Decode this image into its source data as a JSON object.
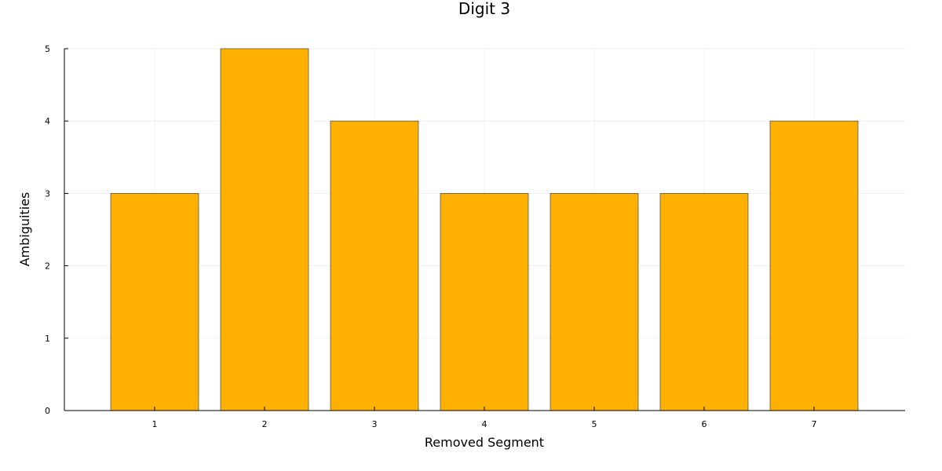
{
  "chart_data": {
    "type": "bar",
    "title": "Digit 3",
    "xlabel": "Removed Segment",
    "ylabel": "Ambiguities",
    "categories": [
      "1",
      "2",
      "3",
      "4",
      "5",
      "6",
      "7"
    ],
    "values": [
      3,
      5,
      4,
      3,
      3,
      3,
      4
    ],
    "ylim": [
      0,
      5
    ],
    "yticks": [
      "0",
      "1",
      "2",
      "3",
      "4",
      "5"
    ],
    "grid": true,
    "legend": "none",
    "bar_color": "#FFB000",
    "bar_edge_color": "#555555"
  }
}
